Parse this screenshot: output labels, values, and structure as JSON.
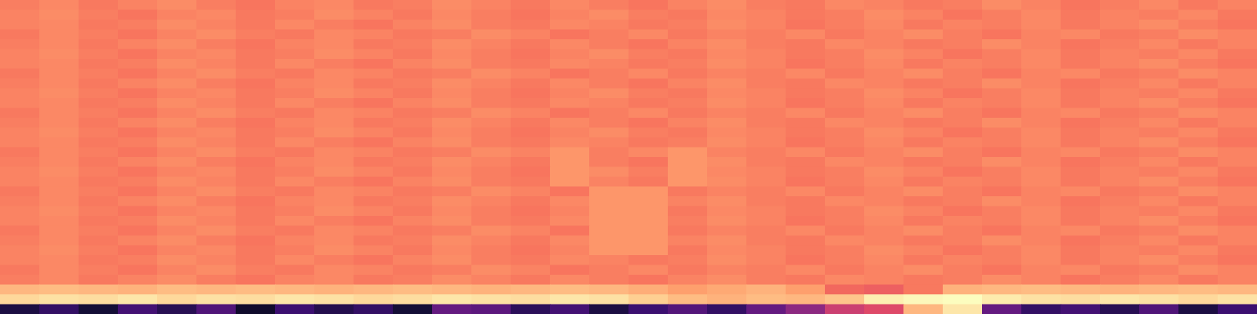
{
  "chart_data": {
    "type": "heatmap",
    "color": "magma",
    "zlim": [
      0,
      1
    ],
    "tick_labels": false,
    "values": [
      [
        0.73,
        0.75,
        0.72,
        0.74,
        0.76,
        0.73,
        0.71,
        0.74,
        0.75,
        0.72,
        0.73,
        0.76,
        0.74,
        0.72,
        0.75,
        0.73,
        0.71,
        0.74,
        0.76,
        0.73,
        0.72,
        0.75,
        0.74,
        0.72,
        0.73,
        0.76,
        0.74,
        0.71,
        0.73,
        0.75,
        0.72,
        0.74
      ],
      [
        0.74,
        0.76,
        0.73,
        0.71,
        0.74,
        0.75,
        0.72,
        0.73,
        0.76,
        0.74,
        0.72,
        0.75,
        0.73,
        0.71,
        0.74,
        0.76,
        0.73,
        0.72,
        0.75,
        0.74,
        0.72,
        0.73,
        0.76,
        0.74,
        0.71,
        0.73,
        0.75,
        0.72,
        0.74,
        0.73,
        0.75,
        0.72
      ],
      [
        0.74,
        0.75,
        0.72,
        0.73,
        0.76,
        0.74,
        0.72,
        0.75,
        0.73,
        0.71,
        0.74,
        0.76,
        0.73,
        0.72,
        0.75,
        0.74,
        0.72,
        0.73,
        0.76,
        0.74,
        0.71,
        0.73,
        0.75,
        0.72,
        0.74,
        0.73,
        0.75,
        0.72,
        0.74,
        0.76,
        0.73,
        0.71
      ],
      [
        0.72,
        0.75,
        0.73,
        0.71,
        0.74,
        0.76,
        0.73,
        0.72,
        0.75,
        0.74,
        0.72,
        0.73,
        0.76,
        0.74,
        0.71,
        0.73,
        0.75,
        0.72,
        0.74,
        0.73,
        0.75,
        0.72,
        0.74,
        0.76,
        0.73,
        0.71,
        0.74,
        0.75,
        0.72,
        0.73,
        0.76,
        0.74
      ],
      [
        0.73,
        0.75,
        0.72,
        0.74,
        0.76,
        0.73,
        0.71,
        0.74,
        0.75,
        0.72,
        0.73,
        0.76,
        0.74,
        0.72,
        0.75,
        0.73,
        0.71,
        0.74,
        0.76,
        0.73,
        0.72,
        0.75,
        0.74,
        0.72,
        0.73,
        0.76,
        0.74,
        0.71,
        0.73,
        0.75,
        0.72,
        0.74
      ],
      [
        0.74,
        0.76,
        0.73,
        0.71,
        0.74,
        0.75,
        0.72,
        0.73,
        0.76,
        0.74,
        0.72,
        0.75,
        0.73,
        0.71,
        0.74,
        0.76,
        0.73,
        0.72,
        0.75,
        0.74,
        0.72,
        0.73,
        0.76,
        0.74,
        0.71,
        0.73,
        0.75,
        0.72,
        0.74,
        0.73,
        0.75,
        0.72
      ],
      [
        0.74,
        0.75,
        0.72,
        0.73,
        0.76,
        0.74,
        0.72,
        0.75,
        0.73,
        0.71,
        0.74,
        0.76,
        0.73,
        0.72,
        0.75,
        0.74,
        0.72,
        0.73,
        0.76,
        0.74,
        0.71,
        0.73,
        0.75,
        0.72,
        0.74,
        0.73,
        0.75,
        0.72,
        0.74,
        0.76,
        0.73,
        0.71
      ],
      [
        0.72,
        0.75,
        0.73,
        0.71,
        0.74,
        0.76,
        0.73,
        0.72,
        0.75,
        0.74,
        0.72,
        0.73,
        0.76,
        0.74,
        0.71,
        0.73,
        0.75,
        0.72,
        0.74,
        0.73,
        0.75,
        0.72,
        0.74,
        0.76,
        0.73,
        0.71,
        0.74,
        0.75,
        0.72,
        0.73,
        0.76,
        0.74
      ],
      [
        0.73,
        0.75,
        0.72,
        0.74,
        0.76,
        0.73,
        0.71,
        0.74,
        0.75,
        0.72,
        0.73,
        0.76,
        0.74,
        0.72,
        0.75,
        0.73,
        0.71,
        0.74,
        0.76,
        0.73,
        0.72,
        0.75,
        0.74,
        0.72,
        0.73,
        0.76,
        0.74,
        0.71,
        0.73,
        0.75,
        0.72,
        0.74
      ],
      [
        0.74,
        0.76,
        0.73,
        0.71,
        0.74,
        0.75,
        0.72,
        0.73,
        0.76,
        0.74,
        0.72,
        0.75,
        0.73,
        0.71,
        0.74,
        0.76,
        0.73,
        0.72,
        0.75,
        0.74,
        0.72,
        0.73,
        0.76,
        0.74,
        0.71,
        0.73,
        0.75,
        0.72,
        0.74,
        0.73,
        0.75,
        0.72
      ],
      [
        0.74,
        0.75,
        0.72,
        0.73,
        0.76,
        0.74,
        0.72,
        0.75,
        0.73,
        0.71,
        0.74,
        0.76,
        0.73,
        0.72,
        0.75,
        0.74,
        0.72,
        0.73,
        0.76,
        0.74,
        0.71,
        0.73,
        0.75,
        0.72,
        0.74,
        0.73,
        0.75,
        0.72,
        0.74,
        0.76,
        0.73,
        0.71
      ],
      [
        0.72,
        0.75,
        0.73,
        0.71,
        0.74,
        0.76,
        0.73,
        0.72,
        0.75,
        0.74,
        0.72,
        0.73,
        0.76,
        0.74,
        0.71,
        0.73,
        0.75,
        0.72,
        0.74,
        0.73,
        0.75,
        0.72,
        0.74,
        0.76,
        0.73,
        0.71,
        0.74,
        0.75,
        0.72,
        0.73,
        0.76,
        0.74
      ],
      [
        0.73,
        0.75,
        0.72,
        0.74,
        0.76,
        0.73,
        0.71,
        0.74,
        0.75,
        0.72,
        0.73,
        0.76,
        0.74,
        0.72,
        0.75,
        0.73,
        0.71,
        0.74,
        0.76,
        0.73,
        0.72,
        0.75,
        0.74,
        0.72,
        0.73,
        0.76,
        0.74,
        0.71,
        0.73,
        0.75,
        0.72,
        0.74
      ],
      [
        0.74,
        0.76,
        0.73,
        0.71,
        0.74,
        0.75,
        0.72,
        0.73,
        0.76,
        0.74,
        0.72,
        0.75,
        0.73,
        0.71,
        0.74,
        0.76,
        0.73,
        0.72,
        0.75,
        0.74,
        0.72,
        0.73,
        0.76,
        0.74,
        0.71,
        0.73,
        0.75,
        0.72,
        0.74,
        0.73,
        0.75,
        0.72
      ],
      [
        0.74,
        0.75,
        0.72,
        0.73,
        0.76,
        0.74,
        0.72,
        0.75,
        0.73,
        0.71,
        0.74,
        0.76,
        0.73,
        0.72,
        0.75,
        0.74,
        0.72,
        0.73,
        0.76,
        0.74,
        0.71,
        0.73,
        0.75,
        0.72,
        0.74,
        0.73,
        0.75,
        0.72,
        0.74,
        0.76,
        0.73,
        0.71
      ],
      [
        0.72,
        0.75,
        0.73,
        0.71,
        0.74,
        0.76,
        0.73,
        0.72,
        0.75,
        0.74,
        0.72,
        0.73,
        0.76,
        0.74,
        0.78,
        0.73,
        0.75,
        0.78,
        0.74,
        0.73,
        0.75,
        0.72,
        0.74,
        0.76,
        0.73,
        0.71,
        0.74,
        0.75,
        0.72,
        0.73,
        0.76,
        0.74
      ],
      [
        0.73,
        0.75,
        0.72,
        0.74,
        0.76,
        0.73,
        0.71,
        0.74,
        0.75,
        0.72,
        0.73,
        0.76,
        0.74,
        0.72,
        0.78,
        0.73,
        0.71,
        0.78,
        0.76,
        0.73,
        0.72,
        0.75,
        0.74,
        0.72,
        0.73,
        0.76,
        0.74,
        0.71,
        0.73,
        0.75,
        0.72,
        0.74
      ],
      [
        0.74,
        0.76,
        0.73,
        0.71,
        0.74,
        0.75,
        0.72,
        0.73,
        0.76,
        0.74,
        0.72,
        0.75,
        0.73,
        0.71,
        0.78,
        0.76,
        0.73,
        0.78,
        0.75,
        0.74,
        0.72,
        0.73,
        0.76,
        0.74,
        0.71,
        0.73,
        0.75,
        0.72,
        0.74,
        0.73,
        0.75,
        0.72
      ],
      [
        0.74,
        0.75,
        0.72,
        0.73,
        0.76,
        0.74,
        0.72,
        0.75,
        0.73,
        0.71,
        0.74,
        0.76,
        0.73,
        0.72,
        0.78,
        0.74,
        0.72,
        0.78,
        0.76,
        0.74,
        0.71,
        0.73,
        0.75,
        0.72,
        0.74,
        0.73,
        0.75,
        0.72,
        0.74,
        0.76,
        0.73,
        0.71
      ],
      [
        0.72,
        0.75,
        0.73,
        0.71,
        0.74,
        0.76,
        0.73,
        0.72,
        0.75,
        0.74,
        0.72,
        0.73,
        0.76,
        0.74,
        0.71,
        0.78,
        0.78,
        0.72,
        0.74,
        0.73,
        0.75,
        0.72,
        0.74,
        0.76,
        0.73,
        0.71,
        0.74,
        0.75,
        0.72,
        0.73,
        0.76,
        0.74
      ],
      [
        0.73,
        0.75,
        0.72,
        0.74,
        0.76,
        0.73,
        0.71,
        0.74,
        0.75,
        0.72,
        0.73,
        0.76,
        0.74,
        0.72,
        0.75,
        0.78,
        0.78,
        0.74,
        0.76,
        0.73,
        0.72,
        0.75,
        0.74,
        0.72,
        0.73,
        0.76,
        0.74,
        0.71,
        0.73,
        0.75,
        0.72,
        0.74
      ],
      [
        0.74,
        0.76,
        0.73,
        0.71,
        0.74,
        0.75,
        0.72,
        0.73,
        0.76,
        0.74,
        0.72,
        0.75,
        0.73,
        0.71,
        0.74,
        0.78,
        0.78,
        0.72,
        0.75,
        0.74,
        0.72,
        0.73,
        0.76,
        0.74,
        0.71,
        0.73,
        0.75,
        0.72,
        0.74,
        0.73,
        0.75,
        0.72
      ],
      [
        0.74,
        0.75,
        0.72,
        0.73,
        0.76,
        0.74,
        0.72,
        0.75,
        0.73,
        0.71,
        0.74,
        0.76,
        0.73,
        0.72,
        0.75,
        0.78,
        0.78,
        0.73,
        0.76,
        0.74,
        0.71,
        0.73,
        0.75,
        0.72,
        0.74,
        0.73,
        0.75,
        0.72,
        0.74,
        0.76,
        0.73,
        0.71
      ],
      [
        0.72,
        0.75,
        0.73,
        0.71,
        0.74,
        0.76,
        0.73,
        0.72,
        0.75,
        0.74,
        0.72,
        0.73,
        0.76,
        0.74,
        0.71,
        0.78,
        0.78,
        0.72,
        0.74,
        0.73,
        0.75,
        0.72,
        0.74,
        0.76,
        0.73,
        0.71,
        0.74,
        0.75,
        0.72,
        0.73,
        0.76,
        0.74
      ],
      [
        0.73,
        0.75,
        0.72,
        0.74,
        0.76,
        0.73,
        0.71,
        0.74,
        0.75,
        0.72,
        0.73,
        0.76,
        0.74,
        0.72,
        0.75,
        0.78,
        0.78,
        0.74,
        0.76,
        0.73,
        0.72,
        0.75,
        0.74,
        0.72,
        0.73,
        0.76,
        0.74,
        0.71,
        0.73,
        0.75,
        0.72,
        0.74
      ],
      [
        0.74,
        0.76,
        0.73,
        0.71,
        0.74,
        0.75,
        0.72,
        0.73,
        0.76,
        0.74,
        0.72,
        0.75,
        0.73,
        0.71,
        0.74,
        0.78,
        0.78,
        0.72,
        0.75,
        0.74,
        0.72,
        0.73,
        0.76,
        0.74,
        0.71,
        0.73,
        0.75,
        0.72,
        0.74,
        0.73,
        0.75,
        0.72
      ],
      [
        0.74,
        0.75,
        0.72,
        0.73,
        0.76,
        0.74,
        0.72,
        0.75,
        0.73,
        0.71,
        0.74,
        0.76,
        0.73,
        0.72,
        0.75,
        0.74,
        0.72,
        0.73,
        0.76,
        0.74,
        0.71,
        0.73,
        0.75,
        0.72,
        0.74,
        0.73,
        0.75,
        0.72,
        0.74,
        0.76,
        0.73,
        0.71
      ],
      [
        0.72,
        0.75,
        0.73,
        0.71,
        0.74,
        0.76,
        0.73,
        0.72,
        0.75,
        0.74,
        0.72,
        0.73,
        0.76,
        0.74,
        0.71,
        0.73,
        0.75,
        0.72,
        0.74,
        0.73,
        0.75,
        0.72,
        0.74,
        0.76,
        0.73,
        0.71,
        0.74,
        0.75,
        0.72,
        0.73,
        0.76,
        0.74
      ],
      [
        0.73,
        0.75,
        0.72,
        0.74,
        0.76,
        0.73,
        0.71,
        0.74,
        0.75,
        0.72,
        0.73,
        0.76,
        0.74,
        0.72,
        0.75,
        0.73,
        0.71,
        0.74,
        0.76,
        0.73,
        0.72,
        0.75,
        0.74,
        0.72,
        0.73,
        0.76,
        0.74,
        0.71,
        0.73,
        0.75,
        0.72,
        0.74
      ],
      [
        0.85,
        0.86,
        0.85,
        0.84,
        0.86,
        0.85,
        0.86,
        0.85,
        0.84,
        0.85,
        0.86,
        0.85,
        0.84,
        0.85,
        0.86,
        0.85,
        0.83,
        0.8,
        0.82,
        0.84,
        0.8,
        0.68,
        0.66,
        0.72,
        0.84,
        0.85,
        0.86,
        0.85,
        0.84,
        0.85,
        0.86,
        0.85
      ],
      [
        0.92,
        0.94,
        0.93,
        0.95,
        0.92,
        0.94,
        0.93,
        0.95,
        0.94,
        0.92,
        0.93,
        0.95,
        0.94,
        0.93,
        0.95,
        0.94,
        0.9,
        0.86,
        0.84,
        0.86,
        0.85,
        0.88,
        0.97,
        0.99,
        1.0,
        0.96,
        0.94,
        0.93,
        0.95,
        0.94,
        0.92,
        0.94
      ],
      [
        0.12,
        0.18,
        0.1,
        0.22,
        0.15,
        0.25,
        0.08,
        0.2,
        0.14,
        0.18,
        0.1,
        0.3,
        0.28,
        0.16,
        0.22,
        0.12,
        0.2,
        0.26,
        0.18,
        0.3,
        0.4,
        0.55,
        0.6,
        0.85,
        0.95,
        0.3,
        0.18,
        0.22,
        0.15,
        0.25,
        0.12,
        0.2
      ]
    ]
  }
}
